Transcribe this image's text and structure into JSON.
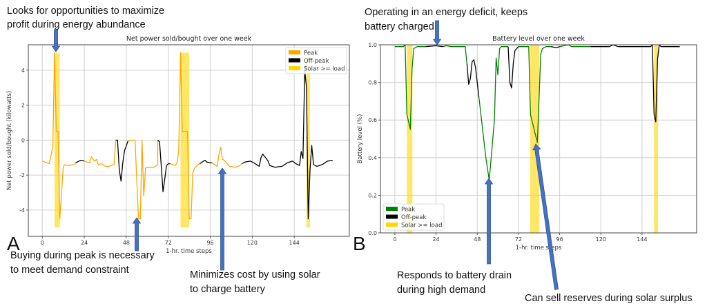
{
  "panels": {
    "a": "A",
    "b": "B"
  },
  "annotations": {
    "abundance": [
      "Looks for opportunities to maximize",
      "profit during energy abundance"
    ],
    "deficit": [
      "Operating in an energy deficit, keeps",
      "battery charged"
    ],
    "buying": [
      "Buying during peak is necessary",
      "to meet demand constraint"
    ],
    "minimizes": [
      "Minimizes cost by using solar",
      "to charge battery"
    ],
    "responds": [
      "Responds to battery drain",
      "during high demand"
    ],
    "sell": [
      "Can sell reserves during solar surplus"
    ]
  },
  "colors": {
    "arrow": "#4472c4",
    "solar": "#ffd700",
    "peak_a": "#ffa500",
    "peak_b": "#008000",
    "offpeak": "#000000"
  },
  "chart_data": [
    {
      "type": "line",
      "title": "Net power sold/bought over one week",
      "xlabel": "1-hr. time steps",
      "ylabel": "Net power sold/bought (kilowatts)",
      "xlim": [
        -8,
        175.5
      ],
      "ylim": [
        -5.5,
        5.45
      ],
      "xticks": [
        0,
        24,
        48,
        72,
        96,
        120,
        144
      ],
      "yticks": [
        -4,
        -2,
        0,
        2,
        4
      ],
      "grid": true,
      "legend": "top-right",
      "legend_entries": [
        "Peak",
        "Off-peak",
        "Solar >= load"
      ],
      "solar_bands": [
        [
          7,
          10
        ],
        [
          79,
          84
        ],
        [
          151,
          153
        ]
      ],
      "solar_band_range": [
        -5,
        5
      ],
      "series": [
        {
          "name": "Peak",
          "segments": [
            [
              [
                0,
                -1.2
              ],
              [
                4,
                -1.35
              ],
              [
                6,
                -0.4
              ],
              [
                7,
                5
              ],
              [
                8,
                0.5
              ],
              [
                9,
                0.5
              ],
              [
                10,
                -4.5
              ],
              [
                12,
                -1.5
              ],
              [
                13,
                -1.4
              ],
              [
                15,
                -1.45
              ],
              [
                18,
                -1.4
              ],
              [
                19,
                -1.3
              ]
            ],
            [
              [
                24,
                -1.2
              ],
              [
                27,
                -1.3
              ],
              [
                28,
                -0.95
              ],
              [
                29,
                -1.1
              ],
              [
                30,
                -1.2
              ],
              [
                31,
                -1.1
              ],
              [
                32,
                -1.4
              ],
              [
                34,
                -1.35
              ],
              [
                36,
                -1.5
              ],
              [
                38,
                -1.5
              ],
              [
                41,
                -1.4
              ],
              [
                42,
                0
              ]
            ],
            [
              [
                49,
                -0.05
              ],
              [
                51,
                0
              ],
              [
                53,
                0
              ],
              [
                55,
                -4.5
              ],
              [
                56,
                -4.5
              ],
              [
                57,
                0
              ],
              [
                58,
                -3.2
              ],
              [
                59,
                -1.6
              ],
              [
                60,
                -1.55
              ],
              [
                64,
                -1.55
              ],
              [
                66,
                -1.4
              ],
              [
                66,
                0
              ]
            ],
            [
              [
                73,
                -1.35
              ],
              [
                76,
                -1.45
              ],
              [
                77,
                -1.3
              ],
              [
                78,
                -0.6
              ],
              [
                79,
                5
              ],
              [
                80,
                0.5
              ],
              [
                83,
                0.5
              ],
              [
                84,
                -4.5
              ],
              [
                85,
                -4.5
              ],
              [
                86,
                -1.9
              ],
              [
                87,
                -1.6
              ],
              [
                89,
                -1.4
              ],
              [
                90,
                -1.35
              ]
            ],
            [
              [
                97,
                -1.3
              ],
              [
                100,
                -1.5
              ],
              [
                101,
                -0.8
              ],
              [
                102,
                -0.4
              ],
              [
                103,
                -1.1
              ],
              [
                104,
                -1.15
              ],
              [
                107,
                -1.5
              ],
              [
                110,
                -1.55
              ],
              [
                113,
                -1.45
              ],
              [
                114,
                -1.35
              ]
            ]
          ]
        },
        {
          "name": "Off-peak",
          "segments": [
            [
              [
                19,
                -1.3
              ],
              [
                20,
                -1.25
              ],
              [
                22,
                -1.15
              ],
              [
                24,
                -1.2
              ]
            ],
            [
              [
                42,
                0
              ],
              [
                43,
                0
              ],
              [
                44,
                -1.7
              ],
              [
                45,
                -2.35
              ],
              [
                46,
                -1.3
              ],
              [
                47,
                -0.6
              ],
              [
                49,
                -0.05
              ]
            ],
            [
              [
                66,
                0
              ],
              [
                67,
                -0.1
              ],
              [
                68,
                -1.5
              ],
              [
                69,
                -2.95
              ],
              [
                70,
                -2.2
              ],
              [
                71,
                -1.45
              ],
              [
                72,
                -1.35
              ],
              [
                73,
                -1.35
              ]
            ],
            [
              [
                90,
                -1.35
              ],
              [
                93,
                -1.15
              ],
              [
                94,
                -1.25
              ],
              [
                96,
                -1.3
              ],
              [
                97,
                -1.3
              ]
            ],
            [
              [
                114,
                -1.35
              ],
              [
                116,
                -1.25
              ],
              [
                119,
                -1.2
              ],
              [
                121,
                -1.3
              ],
              [
                124,
                -1.5
              ],
              [
                125,
                -1.0
              ],
              [
                126,
                -0.8
              ],
              [
                128,
                -1.05
              ],
              [
                129,
                -1.2
              ],
              [
                130,
                -1.45
              ],
              [
                133,
                -1.55
              ],
              [
                137,
                -1.5
              ],
              [
                140,
                -1.3
              ],
              [
                143,
                -1.2
              ],
              [
                145,
                -1.35
              ],
              [
                147,
                -1.45
              ],
              [
                148,
                -0.65
              ],
              [
                149,
                -1.05
              ],
              [
                150,
                4.0
              ],
              [
                151,
                3.0
              ],
              [
                152,
                -4.5
              ],
              [
                153,
                -1.7
              ],
              [
                154,
                -0.3
              ],
              [
                155,
                -1.4
              ],
              [
                157,
                -1.5
              ],
              [
                160,
                -1.4
              ],
              [
                163,
                -1.2
              ],
              [
                166,
                -1.15
              ]
            ]
          ]
        }
      ]
    },
    {
      "type": "line",
      "title": "Battery level over one week",
      "xlabel": "1-hr. time steps",
      "ylabel": "Battery level (%)",
      "xlim": [
        -8.4,
        175.8
      ],
      "ylim": [
        0,
        1
      ],
      "xticks": [
        0,
        24,
        48,
        72,
        96,
        120,
        144
      ],
      "yticks": [
        0.0,
        0.2,
        0.4,
        0.6,
        0.8,
        1.0
      ],
      "grid": true,
      "legend": "lower-left",
      "legend_entries": [
        "Peak",
        "Off-peak",
        "Solar >= load"
      ],
      "solar_bands": [
        [
          7,
          10.2
        ],
        [
          78.8,
          84.2
        ],
        [
          151,
          153.3
        ]
      ],
      "solar_band_range": [
        0,
        1
      ],
      "series": [
        {
          "name": "Peak",
          "segments": [
            [
              [
                0,
                0.99
              ],
              [
                5,
                0.99
              ],
              [
                6,
                1.0
              ],
              [
                7,
                0.63
              ],
              [
                9,
                0.55
              ],
              [
                10,
                0.87
              ],
              [
                11,
                0.98
              ],
              [
                13,
                0.99
              ],
              [
                18,
                0.99
              ]
            ],
            [
              [
                28,
                0.99
              ],
              [
                30,
                0.995
              ],
              [
                33,
                0.99
              ],
              [
                41,
                0.99
              ],
              [
                42,
                0.9
              ]
            ],
            [
              [
                49,
                0.72
              ],
              [
                53,
                0.4
              ],
              [
                55,
                0.28
              ],
              [
                58,
                0.6
              ],
              [
                59,
                0.93
              ],
              [
                60,
                0.84
              ],
              [
                61,
                0.98
              ],
              [
                62,
                0.99
              ],
              [
                66,
                0.99
              ]
            ],
            [
              [
                72,
                0.99
              ],
              [
                78,
                0.99
              ],
              [
                79,
                0.63
              ],
              [
                83,
                0.48
              ],
              [
                85,
                0.95
              ],
              [
                86,
                0.98
              ],
              [
                88,
                0.99
              ],
              [
                91,
                0.99
              ]
            ],
            [
              [
                96,
                0.99
              ],
              [
                101,
                1.0
              ],
              [
                103,
                0.99
              ],
              [
                114,
                0.99
              ]
            ]
          ]
        },
        {
          "name": "Off-peak",
          "segments": [
            [
              [
                18,
                0.99
              ],
              [
                24,
                0.995
              ],
              [
                28,
                0.99
              ]
            ],
            [
              [
                42,
                0.9
              ],
              [
                43,
                0.79
              ],
              [
                44,
                0.82
              ],
              [
                45,
                0.91
              ],
              [
                46,
                0.92
              ],
              [
                47,
                0.88
              ],
              [
                48,
                0.8
              ],
              [
                49,
                0.72
              ]
            ],
            [
              [
                66,
                0.99
              ],
              [
                67,
                0.8
              ],
              [
                68,
                0.77
              ],
              [
                69,
                0.9
              ],
              [
                70,
                0.97
              ],
              [
                72,
                0.99
              ]
            ],
            [
              [
                91,
                0.99
              ],
              [
                94,
                0.985
              ],
              [
                96,
                0.99
              ]
            ],
            [
              [
                114,
                0.99
              ],
              [
                125,
                0.99
              ],
              [
                127,
                1.0
              ],
              [
                130,
                0.99
              ],
              [
                149,
                0.99
              ],
              [
                150,
                1.0
              ],
              [
                151,
                0.63
              ],
              [
                152,
                0.59
              ],
              [
                153,
                0.92
              ],
              [
                154,
                1.0
              ],
              [
                155,
                0.99
              ],
              [
                157,
                0.99
              ],
              [
                166,
                0.99
              ]
            ]
          ]
        }
      ]
    }
  ]
}
